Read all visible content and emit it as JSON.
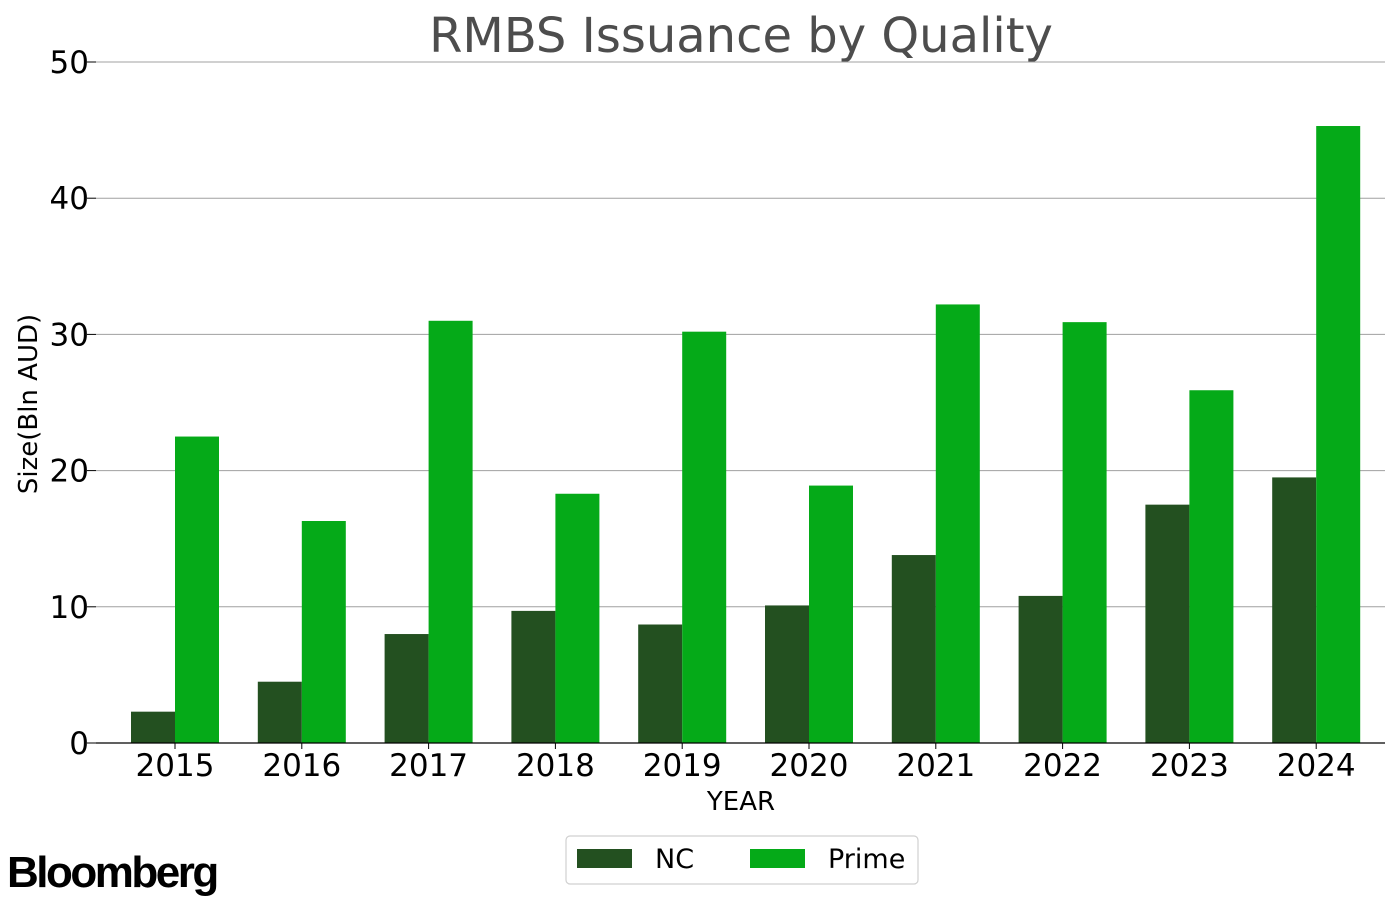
{
  "brand": {
    "logo_text": "Bloomberg"
  },
  "chart_data": {
    "type": "bar",
    "title": "RMBS Issuance by Quality",
    "xlabel": "YEAR",
    "ylabel": "Size(Bln AUD)",
    "categories": [
      "2015",
      "2016",
      "2017",
      "2018",
      "2019",
      "2020",
      "2021",
      "2022",
      "2023",
      "2024"
    ],
    "series": [
      {
        "name": "NC",
        "color": "#235020",
        "values": [
          2.3,
          4.5,
          8.0,
          9.7,
          8.7,
          10.1,
          13.8,
          10.8,
          17.5,
          19.5
        ]
      },
      {
        "name": "Prime",
        "color": "#05aa18",
        "values": [
          22.5,
          16.3,
          31.0,
          18.3,
          30.2,
          18.9,
          32.2,
          30.9,
          25.9,
          45.3
        ]
      }
    ],
    "ylim": [
      0,
      50
    ],
    "yticks": [
      "0",
      "10",
      "20",
      "30",
      "40",
      "50"
    ],
    "grid": "y",
    "legend_position": "bottom-center"
  }
}
